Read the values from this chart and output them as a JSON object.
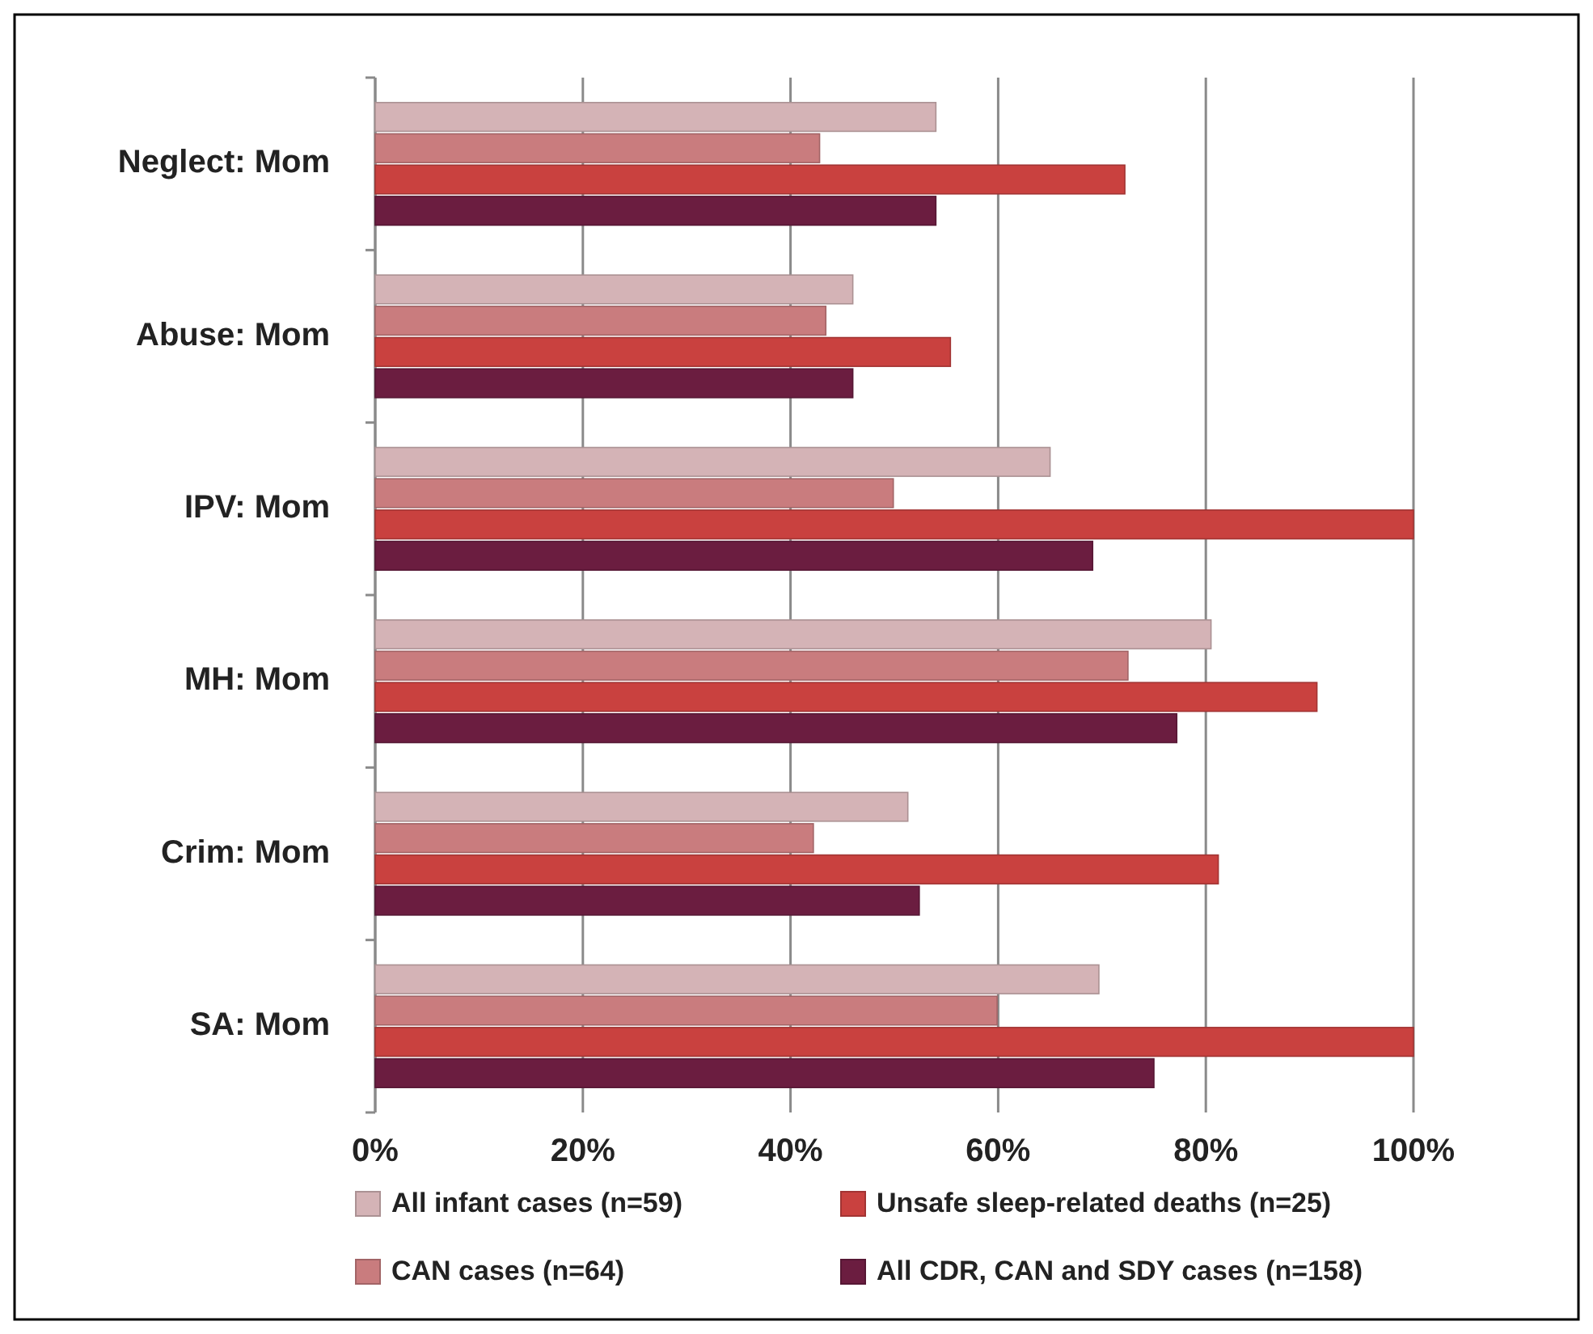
{
  "chart_data": {
    "type": "bar",
    "orientation": "horizontal",
    "categories": [
      "Neglect: Mom",
      "Abuse: Mom",
      "IPV: Mom",
      "MH: Mom",
      "Crim: Mom",
      "SA: Mom"
    ],
    "series": [
      {
        "name": "All infant cases (n=59)",
        "color": "#d4b3b6",
        "values": [
          54,
          46,
          65,
          80.5,
          51.3,
          69.7
        ]
      },
      {
        "name": "CAN cases (n=64)",
        "color": "#c97c7e",
        "values": [
          42.8,
          43.4,
          49.9,
          72.5,
          42.2,
          59.9
        ]
      },
      {
        "name": "Unsafe sleep-related deaths (n=25)",
        "color": "#c9413f",
        "values": [
          72.2,
          55.4,
          100,
          90.7,
          81.2,
          100
        ]
      },
      {
        "name": "All CDR, CAN and SDY cases (n=158)",
        "color": "#6b1d40",
        "values": [
          54,
          46,
          69.1,
          77.2,
          52.4,
          75
        ]
      }
    ],
    "xlim": [
      0,
      100
    ],
    "xticks": [
      {
        "value": 0,
        "label": "0%"
      },
      {
        "value": 20,
        "label": "20%"
      },
      {
        "value": 40,
        "label": "40%"
      },
      {
        "value": 60,
        "label": "60%"
      },
      {
        "value": 80,
        "label": "80%"
      },
      {
        "value": 100,
        "label": "100%"
      }
    ],
    "grid": "x",
    "legend": "bottom"
  }
}
